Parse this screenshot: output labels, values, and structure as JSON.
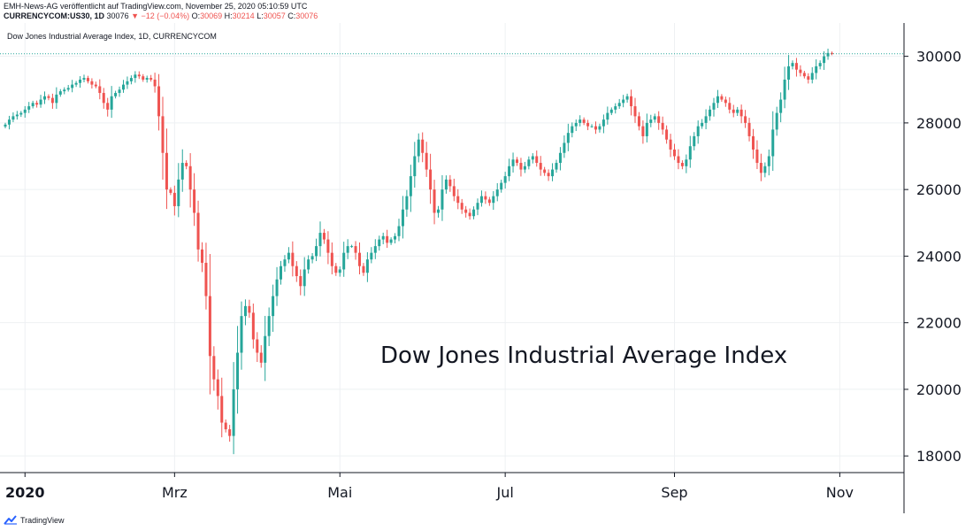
{
  "header": {
    "publisher": "EMH-News-AG veröffentlicht auf TradingView.com, November 25, 2020 05:10:59 UTC",
    "symbol": "CURRENCYCOM:US30, 1D",
    "last": "30076",
    "change": "−12 (−0.04%)",
    "open_label": "O:",
    "open": "30069",
    "high_label": "H:",
    "high": "30214",
    "low_label": "L:",
    "low": "30057",
    "close_label": "C:",
    "close": "30076",
    "down_color": "#ef5350"
  },
  "logo_text": "TradingView",
  "colors": {
    "up": "#26a69a",
    "down": "#ef5350",
    "grid": "#eef0f3",
    "axis": "#131722"
  },
  "chart_data": {
    "type": "candlestick",
    "legend_text": "Dow Jones Industrial Average Index, 1D, CURRENCYCOM",
    "annotation": "Dow Jones Industrial Average Index",
    "y_ticks": [
      18000,
      20000,
      22000,
      24000,
      26000,
      28000,
      30000
    ],
    "ylim": [
      17500,
      31000
    ],
    "x_ticks": [
      {
        "label": "2020",
        "index": 5,
        "bold": true
      },
      {
        "label": "Mrz",
        "index": 43
      },
      {
        "label": "Mai",
        "index": 85
      },
      {
        "label": "Jul",
        "index": 127
      },
      {
        "label": "Sep",
        "index": 170
      },
      {
        "label": "Nov",
        "index": 212
      }
    ],
    "last_price": 30076,
    "close": [
      27950,
      28100,
      28200,
      28250,
      28300,
      28400,
      28500,
      28600,
      28550,
      28700,
      28800,
      28750,
      28600,
      28850,
      28950,
      29000,
      29050,
      29150,
      29200,
      29300,
      29350,
      29250,
      29150,
      29100,
      28900,
      28600,
      28400,
      28800,
      28900,
      29000,
      29150,
      29250,
      29350,
      29450,
      29400,
      29300,
      29350,
      29300,
      29100,
      28200,
      27100,
      26000,
      25900,
      25500,
      26300,
      26800,
      26700,
      26000,
      25300,
      24200,
      23800,
      22800,
      21000,
      20300,
      19800,
      19000,
      18800,
      18600,
      20000,
      21100,
      22200,
      22500,
      22300,
      21500,
      21100,
      20800,
      21600,
      22200,
      22800,
      23300,
      23700,
      23900,
      24100,
      23700,
      23400,
      23100,
      23600,
      23900,
      24000,
      24300,
      24700,
      24500,
      24100,
      23700,
      23500,
      23600,
      24100,
      24300,
      24300,
      24100,
      23700,
      23500,
      23900,
      24100,
      24300,
      24500,
      24600,
      24400,
      24500,
      24600,
      24900,
      25400,
      25800,
      26400,
      27000,
      27500,
      27100,
      26600,
      26000,
      25300,
      25400,
      26000,
      26300,
      26100,
      25800,
      25600,
      25400,
      25300,
      25200,
      25400,
      25600,
      25800,
      25700,
      25600,
      25800,
      26000,
      26200,
      26400,
      26700,
      26900,
      26800,
      26600,
      26700,
      26900,
      27000,
      26800,
      26600,
      26500,
      26400,
      26600,
      26800,
      27100,
      27400,
      27700,
      27900,
      28000,
      28100,
      28000,
      27900,
      27900,
      27800,
      27900,
      28100,
      28300,
      28400,
      28500,
      28600,
      28700,
      28800,
      28500,
      28200,
      27900,
      27600,
      28000,
      28100,
      28200,
      28000,
      27800,
      27500,
      27200,
      27000,
      26800,
      26700,
      26900,
      27300,
      27600,
      27900,
      28000,
      28200,
      28400,
      28600,
      28800,
      28700,
      28600,
      28400,
      28300,
      28400,
      28200,
      28000,
      27600,
      27200,
      26800,
      26500,
      26700,
      27000,
      27800,
      28300,
      28700,
      29300,
      29700,
      29800,
      29600,
      29500,
      29400,
      29300,
      29500,
      29700,
      29800,
      30000,
      30100,
      30076
    ],
    "series": [
      {
        "name": "CURRENCYCOM:US30"
      }
    ]
  }
}
